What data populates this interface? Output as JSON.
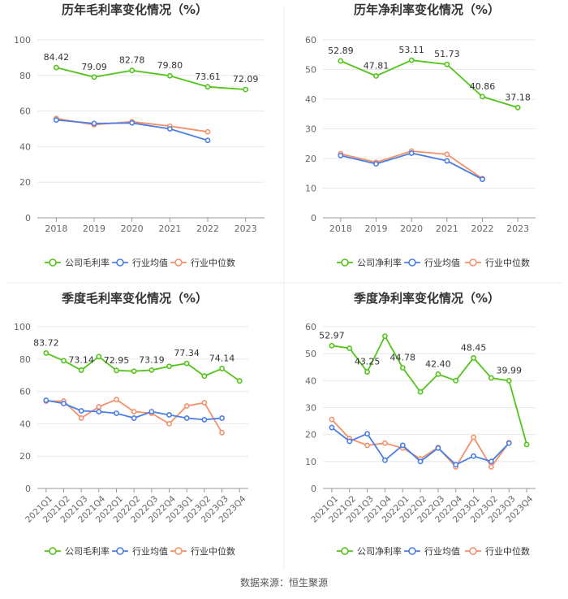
{
  "source": "数据来源：恒生聚源",
  "colors": {
    "company": "#52c41a",
    "avg": "#4a7ee6",
    "median": "#f4916a",
    "grid": "#e8e8e8",
    "axis": "#999999",
    "text": "#333333",
    "tick": "#666666"
  },
  "chart_data": [
    {
      "type": "line",
      "title": "历年毛利率变化情况（%）",
      "categories": [
        "2018",
        "2019",
        "2020",
        "2021",
        "2022",
        "2023"
      ],
      "ylim": [
        0,
        100
      ],
      "yticks": [
        0,
        20,
        40,
        60,
        80,
        100
      ],
      "xtick_rotate": false,
      "series": [
        {
          "name": "公司毛利率",
          "key": "company",
          "values": [
            84.42,
            79.09,
            82.78,
            79.8,
            73.61,
            72.09
          ],
          "labels": [
            true,
            true,
            true,
            true,
            true,
            true
          ]
        },
        {
          "name": "行业均值",
          "key": "avg",
          "values": [
            55.0,
            53.0,
            53.3,
            50.0,
            43.5,
            null
          ]
        },
        {
          "name": "行业中位数",
          "key": "median",
          "values": [
            55.8,
            52.3,
            54.0,
            51.5,
            48.3,
            null
          ]
        }
      ]
    },
    {
      "type": "line",
      "title": "历年净利率变化情况（%）",
      "categories": [
        "2018",
        "2019",
        "2020",
        "2021",
        "2022",
        "2023"
      ],
      "ylim": [
        0,
        60
      ],
      "yticks": [
        0,
        10,
        20,
        30,
        40,
        50,
        60
      ],
      "xtick_rotate": false,
      "series": [
        {
          "name": "公司净利率",
          "key": "company",
          "values": [
            52.89,
            47.81,
            53.11,
            51.73,
            40.86,
            37.18
          ],
          "labels": [
            true,
            true,
            true,
            true,
            true,
            true
          ]
        },
        {
          "name": "行业均值",
          "key": "avg",
          "values": [
            21.0,
            18.2,
            21.8,
            19.2,
            13.0,
            null
          ]
        },
        {
          "name": "行业中位数",
          "key": "median",
          "values": [
            21.6,
            18.7,
            22.5,
            21.4,
            13.2,
            null
          ]
        }
      ]
    },
    {
      "type": "line",
      "title": "季度毛利率变化情况（%）",
      "categories": [
        "2021Q1",
        "2021Q2",
        "2021Q3",
        "2021Q4",
        "2022Q1",
        "2022Q2",
        "2022Q3",
        "2022Q4",
        "2023Q1",
        "2023Q2",
        "2023Q3",
        "2023Q4"
      ],
      "ylim": [
        0,
        100
      ],
      "yticks": [
        0,
        20,
        40,
        60,
        80,
        100
      ],
      "xtick_rotate": true,
      "series": [
        {
          "name": "公司毛利率",
          "key": "company",
          "values": [
            83.72,
            79.0,
            73.14,
            81.5,
            72.95,
            72.5,
            73.19,
            75.5,
            77.34,
            69.5,
            74.14,
            66.5
          ],
          "labels": [
            true,
            false,
            true,
            false,
            true,
            false,
            true,
            false,
            true,
            false,
            true,
            false
          ]
        },
        {
          "name": "行业均值",
          "key": "avg",
          "values": [
            54.5,
            52.5,
            48.0,
            47.5,
            46.5,
            43.5,
            47.5,
            45.5,
            43.5,
            42.5,
            43.5,
            null
          ]
        },
        {
          "name": "行业中位数",
          "key": "median",
          "values": [
            54.0,
            54.0,
            43.5,
            50.5,
            55.0,
            47.5,
            46.5,
            40.0,
            51.0,
            53.0,
            34.5,
            null
          ]
        }
      ]
    },
    {
      "type": "line",
      "title": "季度净利率变化情况（%）",
      "categories": [
        "2021Q1",
        "2021Q2",
        "2021Q3",
        "2021Q4",
        "2022Q1",
        "2022Q2",
        "2022Q3",
        "2022Q4",
        "2023Q1",
        "2023Q2",
        "2023Q3",
        "2023Q4"
      ],
      "ylim": [
        0,
        60
      ],
      "yticks": [
        0,
        10,
        20,
        30,
        40,
        50,
        60
      ],
      "xtick_rotate": true,
      "series": [
        {
          "name": "公司净利率",
          "key": "company",
          "values": [
            52.97,
            52.0,
            43.25,
            56.5,
            44.78,
            35.8,
            42.4,
            40.0,
            48.45,
            41.0,
            39.99,
            16.3
          ],
          "labels": [
            true,
            false,
            true,
            false,
            true,
            false,
            true,
            false,
            true,
            false,
            true,
            false
          ]
        },
        {
          "name": "行业均值",
          "key": "avg",
          "values": [
            22.6,
            17.5,
            20.3,
            10.5,
            16.0,
            10.0,
            15.0,
            8.8,
            12.0,
            10.0,
            16.8,
            null
          ]
        },
        {
          "name": "行业中位数",
          "key": "median",
          "values": [
            25.6,
            18.5,
            16.0,
            16.8,
            15.0,
            11.0,
            15.2,
            8.0,
            19.0,
            8.0,
            17.0,
            null
          ]
        }
      ]
    }
  ]
}
